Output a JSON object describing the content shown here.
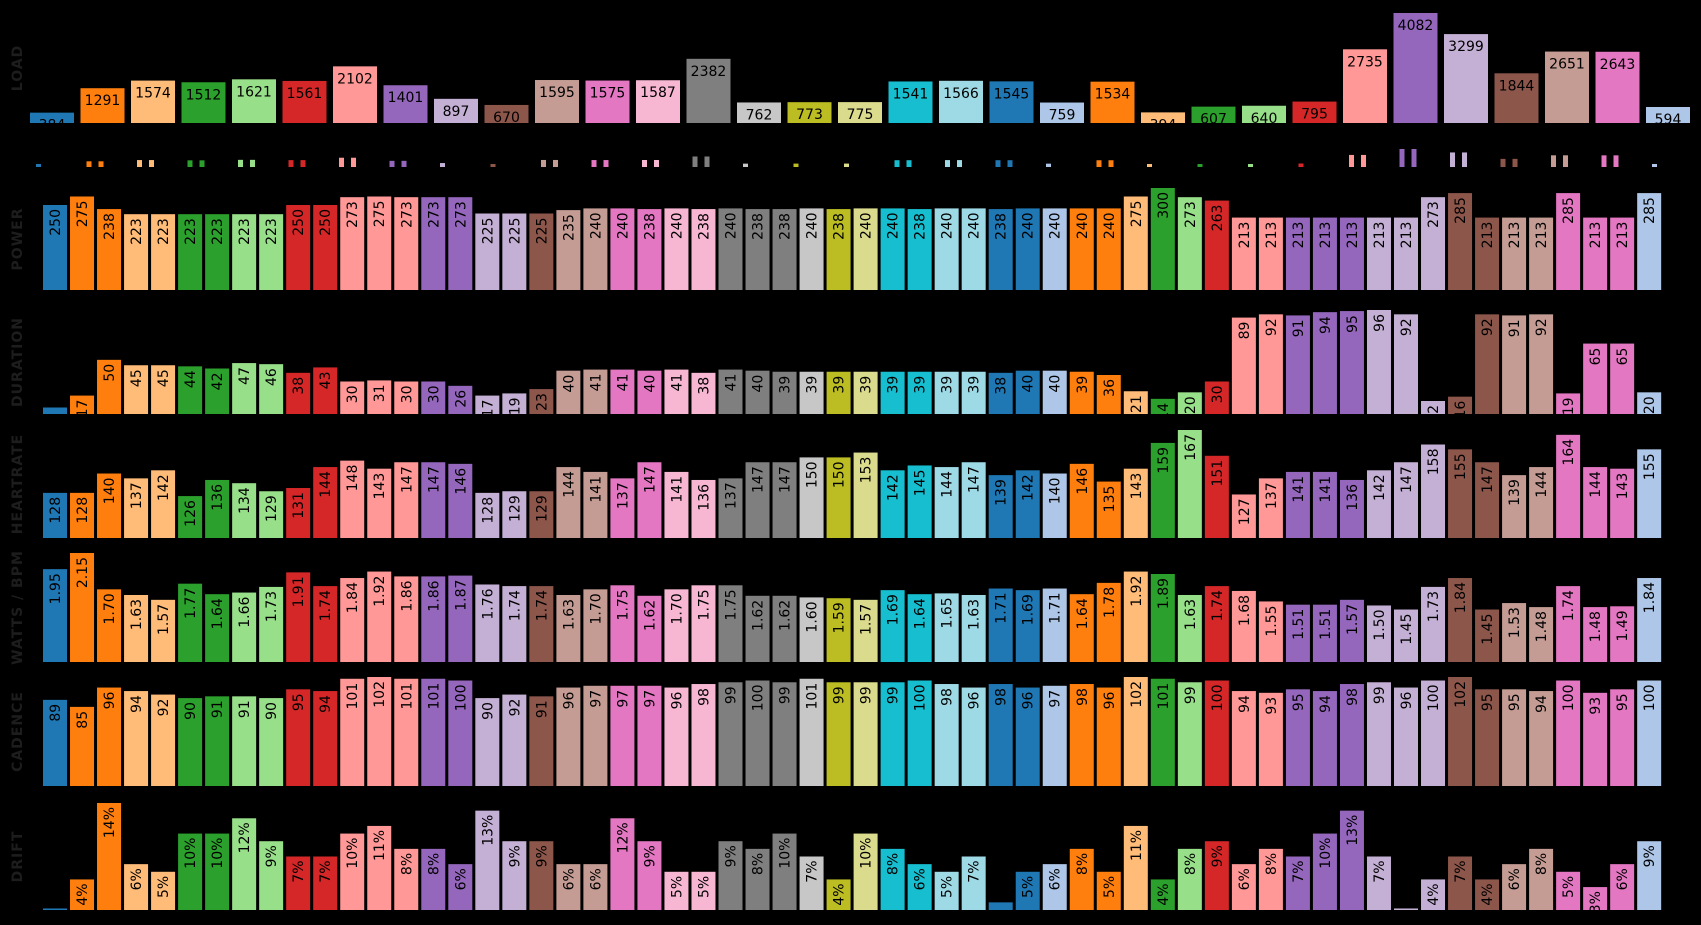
{
  "chart_data": [
    {
      "type": "bar",
      "ylabel": "LOAD",
      "values": [
        384,
        1291,
        1574,
        1512,
        1621,
        1561,
        2102,
        1401,
        897,
        670,
        1595,
        1575,
        1587,
        2382,
        762,
        773,
        775,
        1541,
        1566,
        1545,
        759,
        1534,
        394,
        607,
        640,
        795,
        2735,
        4082,
        3299,
        1844,
        2651,
        2643,
        594
      ],
      "labels": [
        "384",
        "1291",
        "1574",
        "1512",
        "1621",
        "1561",
        "2102",
        "1401",
        "897",
        "670",
        "1595",
        "1575",
        "1587",
        "2382",
        "762",
        "773",
        "775",
        "1541",
        "1566",
        "1545",
        "759",
        "1534",
        "394",
        "607",
        "640",
        "795",
        "2735",
        "4082",
        "3299",
        "1844",
        "2651",
        "2643",
        "594"
      ]
    },
    {
      "type": "bar",
      "ylabel": "POWER",
      "values": [
        250,
        275,
        238,
        223,
        223,
        223,
        223,
        223,
        223,
        250,
        250,
        273,
        275,
        273,
        273,
        273,
        225,
        225,
        225,
        235,
        240,
        240,
        238,
        240,
        238,
        240,
        238,
        238,
        240,
        238,
        240,
        240,
        238,
        240,
        240,
        238,
        240,
        240,
        240,
        240,
        275,
        300,
        273,
        263,
        213,
        213,
        213,
        213,
        213,
        213,
        213,
        273,
        285,
        213,
        213,
        213,
        285,
        213,
        213,
        285
      ],
      "labels": [
        "250",
        "275",
        "238",
        "223",
        "223",
        "223",
        "223",
        "223",
        "223",
        "250",
        "250",
        "273",
        "275",
        "273",
        "273",
        "273",
        "225",
        "225",
        "225",
        "235",
        "240",
        "240",
        "238",
        "240",
        "238",
        "240",
        "238",
        "238",
        "240",
        "238",
        "240",
        "240",
        "238",
        "240",
        "240",
        "238",
        "240",
        "240",
        "240",
        "240",
        "275",
        "300",
        "273",
        "263",
        "213",
        "213",
        "213",
        "213",
        "213",
        "213",
        "213",
        "273",
        "285",
        "213",
        "213",
        "213",
        "285",
        "213",
        "213",
        "285"
      ]
    },
    {
      "type": "bar",
      "ylabel": "DURATION",
      "values": [
        6,
        17,
        50,
        45,
        45,
        44,
        42,
        47,
        46,
        38,
        43,
        30,
        31,
        30,
        30,
        26,
        17,
        19,
        23,
        40,
        41,
        41,
        40,
        41,
        38,
        41,
        40,
        39,
        39,
        39,
        39,
        39,
        39,
        39,
        39,
        38,
        40,
        40,
        39,
        36,
        21,
        14,
        20,
        30,
        89,
        92,
        91,
        94,
        95,
        96,
        92,
        12,
        16,
        92,
        91,
        92,
        19,
        65,
        65,
        20
      ],
      "labels": [
        "",
        "17",
        "50",
        "45",
        "45",
        "44",
        "42",
        "47",
        "46",
        "38",
        "43",
        "30",
        "31",
        "30",
        "30",
        "26",
        "17",
        "19",
        "23",
        "40",
        "41",
        "41",
        "40",
        "41",
        "38",
        "41",
        "40",
        "39",
        "39",
        "39",
        "39",
        "39",
        "39",
        "39",
        "39",
        "38",
        "40",
        "40",
        "39",
        "36",
        "21",
        "14",
        "20",
        "30",
        "89",
        "92",
        "91",
        "94",
        "95",
        "96",
        "92",
        "12",
        "16",
        "92",
        "91",
        "92",
        "19",
        "65",
        "65",
        "20"
      ]
    },
    {
      "type": "bar",
      "ylabel": "HEARTRATE",
      "values": [
        128,
        128,
        140,
        137,
        142,
        126,
        136,
        134,
        129,
        131,
        144,
        148,
        143,
        147,
        147,
        146,
        128,
        129,
        129,
        144,
        141,
        137,
        147,
        141,
        136,
        137,
        147,
        147,
        150,
        150,
        153,
        142,
        145,
        144,
        147,
        139,
        142,
        140,
        146,
        135,
        143,
        159,
        167,
        151,
        127,
        137,
        141,
        141,
        136,
        142,
        147,
        158,
        155,
        147,
        139,
        144,
        164,
        144,
        143,
        155
      ],
      "labels": [
        "128",
        "128",
        "140",
        "137",
        "142",
        "126",
        "136",
        "134",
        "129",
        "131",
        "144",
        "148",
        "143",
        "147",
        "147",
        "146",
        "128",
        "129",
        "129",
        "144",
        "141",
        "137",
        "147",
        "141",
        "136",
        "137",
        "147",
        "147",
        "150",
        "150",
        "153",
        "142",
        "145",
        "144",
        "147",
        "139",
        "142",
        "140",
        "146",
        "135",
        "143",
        "159",
        "167",
        "151",
        "127",
        "137",
        "141",
        "141",
        "136",
        "142",
        "147",
        "158",
        "155",
        "147",
        "139",
        "144",
        "164",
        "144",
        "143",
        "155"
      ]
    },
    {
      "type": "bar",
      "ylabel": "WATTS / BPM",
      "values": [
        1.95,
        2.15,
        1.7,
        1.63,
        1.57,
        1.77,
        1.64,
        1.66,
        1.73,
        1.91,
        1.74,
        1.84,
        1.92,
        1.86,
        1.86,
        1.87,
        1.76,
        1.74,
        1.74,
        1.63,
        1.7,
        1.75,
        1.62,
        1.7,
        1.75,
        1.75,
        1.62,
        1.62,
        1.6,
        1.59,
        1.57,
        1.69,
        1.64,
        1.65,
        1.63,
        1.71,
        1.69,
        1.71,
        1.64,
        1.78,
        1.92,
        1.89,
        1.63,
        1.74,
        1.68,
        1.55,
        1.51,
        1.51,
        1.57,
        1.5,
        1.45,
        1.73,
        1.84,
        1.45,
        1.53,
        1.48,
        1.74,
        1.48,
        1.49,
        1.84
      ],
      "labels": [
        "1.95",
        "2.15",
        "1.70",
        "1.63",
        "1.57",
        "1.77",
        "1.64",
        "1.66",
        "1.73",
        "1.91",
        "1.74",
        "1.84",
        "1.92",
        "1.86",
        "1.86",
        "1.87",
        "1.76",
        "1.74",
        "1.74",
        "1.63",
        "1.70",
        "1.75",
        "1.62",
        "1.70",
        "1.75",
        "1.75",
        "1.62",
        "1.62",
        "1.60",
        "1.59",
        "1.57",
        "1.69",
        "1.64",
        "1.65",
        "1.63",
        "1.71",
        "1.69",
        "1.71",
        "1.64",
        "1.78",
        "1.92",
        "1.89",
        "1.63",
        "1.74",
        "1.68",
        "1.55",
        "1.51",
        "1.51",
        "1.57",
        "1.50",
        "1.45",
        "1.73",
        "1.84",
        "1.45",
        "1.53",
        "1.48",
        "1.74",
        "1.48",
        "1.49",
        "1.84"
      ]
    },
    {
      "type": "bar",
      "ylabel": "CADENCE",
      "values": [
        89,
        85,
        96,
        94,
        92,
        90,
        91,
        91,
        90,
        95,
        94,
        101,
        102,
        101,
        101,
        100,
        90,
        92,
        91,
        96,
        97,
        97,
        97,
        96,
        98,
        99,
        100,
        99,
        101,
        99,
        99,
        99,
        100,
        98,
        96,
        98,
        96,
        97,
        98,
        96,
        102,
        101,
        99,
        100,
        94,
        93,
        95,
        94,
        98,
        99,
        96,
        100,
        102,
        95,
        95,
        94,
        100,
        93,
        95,
        100
      ],
      "labels": [
        "89",
        "85",
        "96",
        "94",
        "92",
        "90",
        "91",
        "91",
        "90",
        "95",
        "94",
        "101",
        "102",
        "101",
        "101",
        "100",
        "90",
        "92",
        "91",
        "96",
        "97",
        "97",
        "97",
        "96",
        "98",
        "99",
        "100",
        "99",
        "101",
        "99",
        "99",
        "99",
        "100",
        "98",
        "96",
        "98",
        "96",
        "97",
        "98",
        "96",
        "102",
        "101",
        "99",
        "100",
        "94",
        "93",
        "95",
        "94",
        "98",
        "99",
        "96",
        "100",
        "102",
        "95",
        "95",
        "94",
        "100",
        "93",
        "95",
        "100"
      ]
    },
    {
      "type": "bar",
      "ylabel": "DRIFT",
      "values": [
        0.2,
        4,
        14,
        6,
        5,
        10,
        10,
        12,
        9,
        7,
        7,
        10,
        11,
        8,
        8,
        6,
        13,
        9,
        9,
        6,
        6,
        12,
        9,
        5,
        5,
        9,
        8,
        10,
        7,
        4,
        10,
        8,
        6,
        5,
        7,
        1,
        5,
        6,
        8,
        5,
        11,
        4,
        8,
        9,
        6,
        8,
        7,
        10,
        13,
        7,
        0.2,
        4,
        7,
        4,
        6,
        8,
        5,
        3,
        6,
        9
      ],
      "labels": [
        "",
        "4%",
        "14%",
        "6%",
        "5%",
        "10%",
        "10%",
        "12%",
        "9%",
        "7%",
        "7%",
        "10%",
        "11%",
        "8%",
        "8%",
        "6%",
        "13%",
        "9%",
        "9%",
        "6%",
        "6%",
        "12%",
        "9%",
        "5%",
        "5%",
        "9%",
        "8%",
        "10%",
        "7%",
        "4%",
        "10%",
        "8%",
        "6%",
        "5%",
        "7%",
        "",
        "5%",
        "6%",
        "8%",
        "5%",
        "11%",
        "4%",
        "8%",
        "9%",
        "6%",
        "8%",
        "7%",
        "10%",
        "13%",
        "7%",
        "",
        "4%",
        "7%",
        "4%",
        "6%",
        "8%",
        "5%",
        "3%",
        "6%",
        "9%"
      ]
    }
  ],
  "bar_colors": [
    "#1f77b4",
    "#ff7f0e",
    "#ff7f0e",
    "#ffbb78",
    "#ffbb78",
    "#2ca02c",
    "#2ca02c",
    "#98df8a",
    "#98df8a",
    "#d62728",
    "#d62728",
    "#ff9896",
    "#ff9896",
    "#ff9896",
    "#9467bd",
    "#9467bd",
    "#c5b0d5",
    "#c5b0d5",
    "#8c564b",
    "#c49c94",
    "#c49c94",
    "#e377c2",
    "#e377c2",
    "#f7b6d2",
    "#f7b6d2",
    "#7f7f7f",
    "#7f7f7f",
    "#7f7f7f",
    "#c7c7c7",
    "#bcbd22",
    "#dbdb8d",
    "#17becf",
    "#17becf",
    "#9edae5",
    "#9edae5",
    "#1f77b4",
    "#1f77b4",
    "#aec7e8",
    "#ff7f0e",
    "#ff7f0e",
    "#ffbb78",
    "#2ca02c",
    "#98df8a",
    "#d62728",
    "#ff9896",
    "#ff9896",
    "#9467bd",
    "#9467bd",
    "#9467bd",
    "#c5b0d5",
    "#c5b0d5",
    "#c5b0d5",
    "#8c564b",
    "#8c564b",
    "#c49c94",
    "#c49c94",
    "#e377c2",
    "#e377c2",
    "#e377c2",
    "#aec7e8"
  ],
  "load_colors": [
    "#1f77b4",
    "#ff7f0e",
    "#ffbb78",
    "#2ca02c",
    "#98df8a",
    "#d62728",
    "#ff9896",
    "#9467bd",
    "#c5b0d5",
    "#8c564b",
    "#c49c94",
    "#e377c2",
    "#f7b6d2",
    "#7f7f7f",
    "#c7c7c7",
    "#bcbd22",
    "#dbdb8d",
    "#17becf",
    "#9edae5",
    "#1f77b4",
    "#aec7e8",
    "#ff7f0e",
    "#ffbb78",
    "#2ca02c",
    "#98df8a",
    "#d62728",
    "#ff9896",
    "#9467bd",
    "#c5b0d5",
    "#8c564b",
    "#c49c94",
    "#e377c2",
    "#aec7e8"
  ],
  "background_color": "#000000",
  "text_color": "#000000",
  "row_label_color": "#1d1d1d"
}
